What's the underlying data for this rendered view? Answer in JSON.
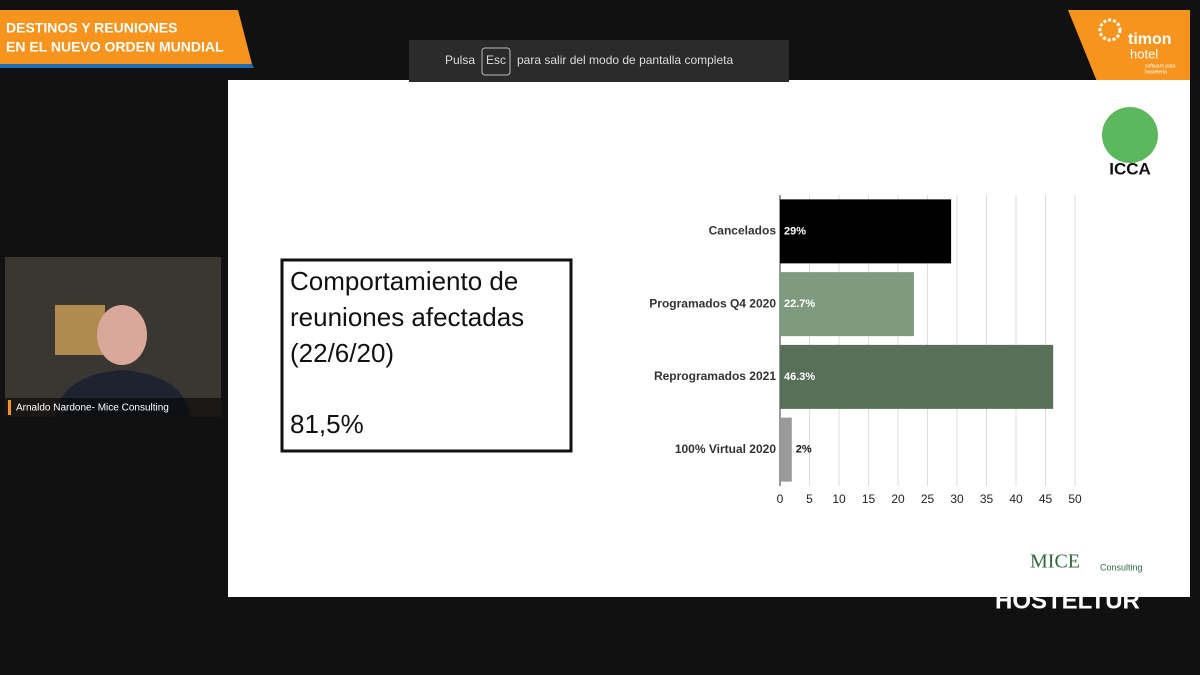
{
  "banner": {
    "line1": "DESTINOS Y REUNIONES",
    "line2": "EN EL NUEVO ORDEN MUNDIAL"
  },
  "notice": {
    "before": "Pulsa",
    "key": "Esc",
    "after": "para salir del modo de pantalla completa"
  },
  "sponsor": {
    "name": "timon",
    "sub": "hotel",
    "tagline1": "software para",
    "tagline2": "hostelería"
  },
  "speaker": {
    "name": "Arnaldo Nardone- Mice Consulting"
  },
  "slide": {
    "logo": "ICCA",
    "box_lines": [
      "Comportamiento de",
      "reuniones afectadas",
      "(22/6/20)"
    ],
    "box_value": "81,5%",
    "footer_logo": "MICE",
    "footer_logo_sub": "Consulting"
  },
  "watermark": "HOSTELTUR",
  "chart_data": {
    "type": "hbar",
    "categories": [
      "Cancelados",
      "Programados Q4 2020",
      "Reprogramados 2021",
      "100% Virtual 2020"
    ],
    "values": [
      29,
      22.7,
      46.3,
      2
    ],
    "value_labels": [
      "29%",
      "22.7%",
      "46.3%",
      "2%"
    ],
    "colors": [
      "#000000",
      "#7f9b7f",
      "#577057",
      "#9a9a9a"
    ],
    "xlim": [
      0,
      50
    ],
    "xticks": [
      0,
      5,
      10,
      15,
      20,
      25,
      30,
      35,
      40,
      45,
      50
    ],
    "grid": true
  }
}
